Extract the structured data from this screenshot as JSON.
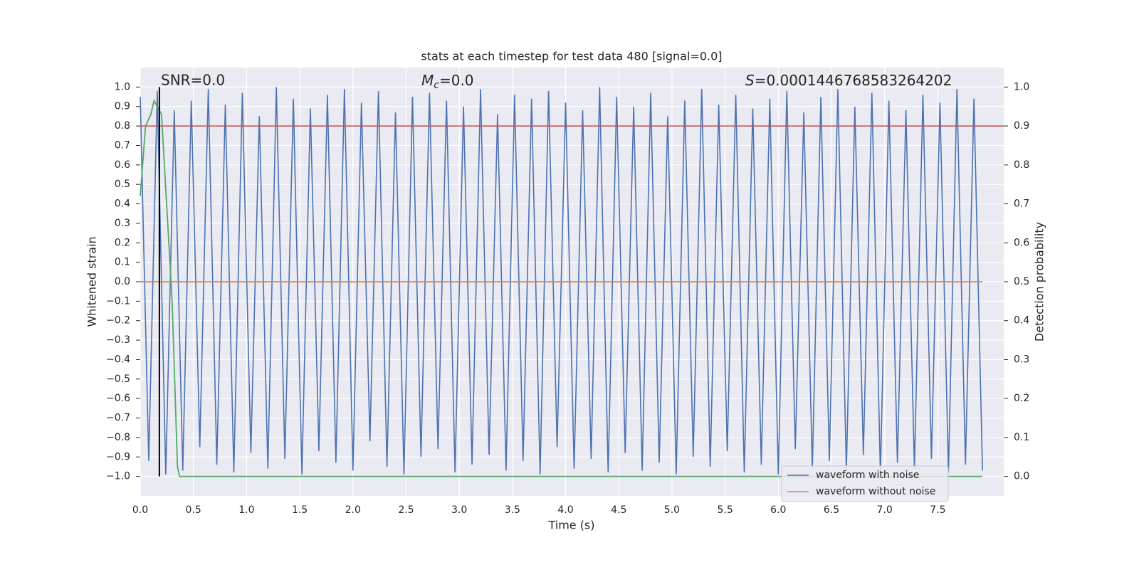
{
  "chart_data": {
    "type": "line",
    "title": "stats at each timestep for test data 480 [signal=0.0]",
    "xlabel": "Time (s)",
    "ylabel": "Whitened strain",
    "y2label": "Detection probability",
    "annotations": {
      "snr": "SNR=0.0",
      "chirp_mass": {
        "symbol": "M",
        "sub": "c",
        "text": "=0.0"
      },
      "s": {
        "symbol": "S",
        "text": "=0.0001446768583264202"
      }
    },
    "xlim": [
      0,
      8.12
    ],
    "ylim": [
      -1.1,
      1.1
    ],
    "y2lim": [
      -0.05,
      1.05
    ],
    "xticks": [
      {
        "value": 0,
        "label": "0.0"
      },
      {
        "value": 0.5,
        "label": "0.5"
      },
      {
        "value": 1,
        "label": "1.0"
      },
      {
        "value": 1.5,
        "label": "1.5"
      },
      {
        "value": 2,
        "label": "2.0"
      },
      {
        "value": 2.5,
        "label": "2.5"
      },
      {
        "value": 3,
        "label": "3.0"
      },
      {
        "value": 3.5,
        "label": "3.5"
      },
      {
        "value": 4,
        "label": "4.0"
      },
      {
        "value": 4.5,
        "label": "4.5"
      },
      {
        "value": 5,
        "label": "5.0"
      },
      {
        "value": 5.5,
        "label": "5.5"
      },
      {
        "value": 6,
        "label": "6.0"
      },
      {
        "value": 6.5,
        "label": "6.5"
      },
      {
        "value": 7,
        "label": "7.0"
      },
      {
        "value": 7.5,
        "label": "7.5"
      }
    ],
    "yticks": [
      {
        "value": 1,
        "label": "1.0"
      },
      {
        "value": 0.9,
        "label": "0.9"
      },
      {
        "value": 0.8,
        "label": "0.8"
      },
      {
        "value": 0.7,
        "label": "0.7"
      },
      {
        "value": 0.6,
        "label": "0.6"
      },
      {
        "value": 0.5,
        "label": "0.5"
      },
      {
        "value": 0.4,
        "label": "0.4"
      },
      {
        "value": 0.3,
        "label": "0.3"
      },
      {
        "value": 0.2,
        "label": "0.2"
      },
      {
        "value": 0.1,
        "label": "0.1"
      },
      {
        "value": 0,
        "label": "0.0"
      },
      {
        "value": -0.1,
        "label": "−0.1"
      },
      {
        "value": -0.2,
        "label": "−0.2"
      },
      {
        "value": -0.3,
        "label": "−0.3"
      },
      {
        "value": -0.4,
        "label": "−0.4"
      },
      {
        "value": -0.5,
        "label": "−0.5"
      },
      {
        "value": -0.6,
        "label": "−0.6"
      },
      {
        "value": -0.7,
        "label": "−0.7"
      },
      {
        "value": -0.8,
        "label": "−0.8"
      },
      {
        "value": -0.9,
        "label": "−0.9"
      },
      {
        "value": -1,
        "label": "−1.0"
      }
    ],
    "y2ticks": [
      {
        "value": 1,
        "label": "1.0"
      },
      {
        "value": 0.9,
        "label": "0.9"
      },
      {
        "value": 0.8,
        "label": "0.8"
      },
      {
        "value": 0.7,
        "label": "0.7"
      },
      {
        "value": 0.6,
        "label": "0.6"
      },
      {
        "value": 0.5,
        "label": "0.5"
      },
      {
        "value": 0.4,
        "label": "0.4"
      },
      {
        "value": 0.3,
        "label": "0.3"
      },
      {
        "value": 0.2,
        "label": "0.2"
      },
      {
        "value": 0.1,
        "label": "0.1"
      },
      {
        "value": 0,
        "label": "0.0"
      }
    ],
    "grid": true,
    "legend": "lower right",
    "hline": {
      "value": 0.8,
      "color": "#c44e52"
    },
    "vline": {
      "value": 0.18,
      "color": "#000000"
    },
    "series": [
      {
        "name": "waveform with noise",
        "color": "#4c72b0",
        "axis": "y",
        "x": [
          0,
          0.08,
          0.16,
          0.24,
          0.32,
          0.4,
          0.48,
          0.56,
          0.64,
          0.72,
          0.8,
          0.88,
          0.96,
          1.04,
          1.12,
          1.2,
          1.28,
          1.36,
          1.44,
          1.52,
          1.6,
          1.68,
          1.76,
          1.84,
          1.92,
          2.0,
          2.08,
          2.16,
          2.24,
          2.32,
          2.4,
          2.48,
          2.56,
          2.64,
          2.72,
          2.8,
          2.88,
          2.96,
          3.04,
          3.12,
          3.2,
          3.28,
          3.36,
          3.44,
          3.52,
          3.6,
          3.68,
          3.76,
          3.84,
          3.92,
          4.0,
          4.08,
          4.16,
          4.24,
          4.32,
          4.4,
          4.48,
          4.56,
          4.64,
          4.72,
          4.8,
          4.88,
          4.96,
          5.04,
          5.12,
          5.2,
          5.28,
          5.36,
          5.44,
          5.52,
          5.6,
          5.68,
          5.76,
          5.84,
          5.92,
          6.0,
          6.08,
          6.16,
          6.24,
          6.32,
          6.4,
          6.48,
          6.56,
          6.64,
          6.72,
          6.8,
          6.88,
          6.96,
          7.04,
          7.12,
          7.2,
          7.28,
          7.36,
          7.44,
          7.52,
          7.6,
          7.68,
          7.76,
          7.84,
          7.92
        ],
        "values": [
          0.95,
          -0.92,
          0.98,
          -0.99,
          0.88,
          -0.97,
          0.93,
          -0.85,
          0.99,
          -0.94,
          0.91,
          -0.98,
          0.97,
          -0.88,
          0.85,
          -0.96,
          1.0,
          -0.91,
          0.94,
          -0.99,
          0.89,
          -0.87,
          0.96,
          -0.93,
          0.99,
          -0.97,
          0.92,
          -0.82,
          0.98,
          -0.95,
          0.87,
          -0.99,
          0.95,
          -0.9,
          0.97,
          -0.86,
          0.93,
          -0.98,
          0.9,
          -0.94,
          0.99,
          -0.89,
          0.86,
          -0.97,
          0.96,
          -0.92,
          0.94,
          -0.99,
          0.98,
          -0.85,
          0.92,
          -0.96,
          0.88,
          -0.91,
          1.0,
          -0.98,
          0.95,
          -0.88,
          0.9,
          -0.97,
          0.97,
          -0.93,
          0.85,
          -0.99,
          0.93,
          -0.9,
          0.99,
          -0.95,
          0.91,
          -0.87,
          0.96,
          -0.98,
          0.89,
          -0.94,
          0.94,
          -0.99,
          0.98,
          -0.86,
          0.87,
          -0.96,
          0.95,
          -0.92,
          0.99,
          -0.97,
          0.9,
          -0.89,
          0.97,
          -0.99,
          0.93,
          -0.93,
          0.88,
          -0.96,
          0.96,
          -0.91,
          0.92,
          -0.98,
          0.99,
          -0.94,
          0.94,
          -0.97
        ]
      },
      {
        "name": "waveform without noise",
        "color": "#dd8452",
        "axis": "y",
        "x": [
          0,
          7.92
        ],
        "values": [
          0,
          0
        ]
      },
      {
        "color": "#55a868",
        "axis": "y2",
        "x": [
          0,
          0.05,
          0.1,
          0.13,
          0.2,
          0.3,
          0.35,
          0.37,
          7.92
        ],
        "values": [
          0.72,
          0.9,
          0.93,
          0.965,
          0.93,
          0.45,
          0.025,
          0,
          0
        ]
      }
    ]
  }
}
